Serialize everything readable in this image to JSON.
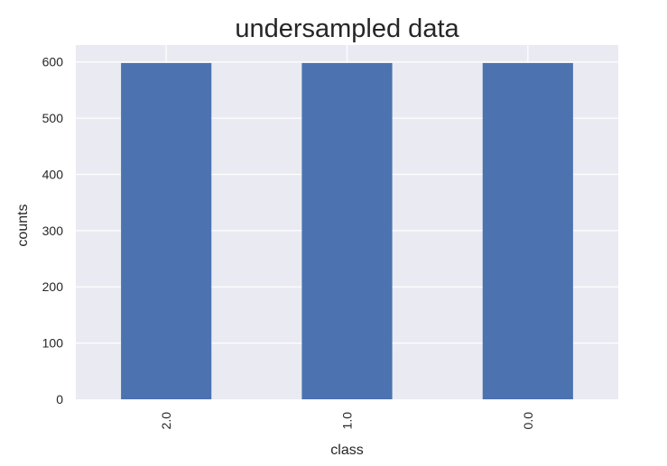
{
  "chart_data": {
    "type": "bar",
    "title": "undersampled data",
    "xlabel": "class",
    "ylabel": "counts",
    "categories": [
      "2.0",
      "1.0",
      "0.0"
    ],
    "values": [
      598,
      598,
      598
    ],
    "ylim": [
      0,
      630
    ],
    "yticks": [
      0,
      100,
      200,
      300,
      400,
      500,
      600
    ],
    "grid": true,
    "bar_color": "#4c72b0",
    "background_color": "#eaeaf2",
    "grid_color": "#ffffff"
  }
}
